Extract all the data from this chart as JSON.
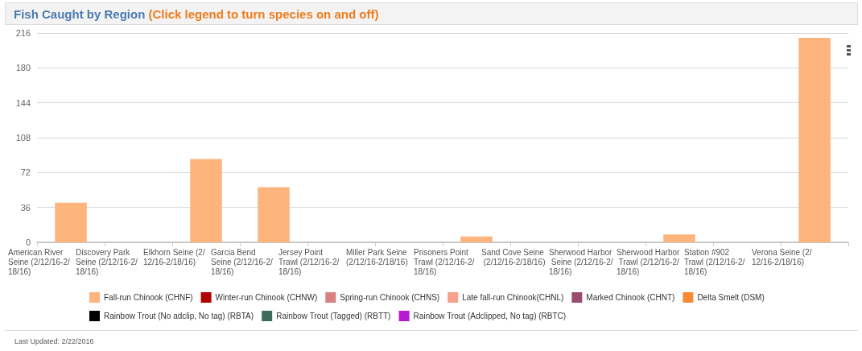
{
  "chart_data": {
    "type": "bar",
    "title": "Fish Caught by Region",
    "subtitle": "(Click legend to turn species on and off)",
    "annotations": [
      "Last Updated: 2/22/2016"
    ],
    "categories": [
      "American River Seine (2/12/16-2/18/16)",
      "Discovery Park Seine (2/12/16-2/18/16)",
      "Elkhorn Seine (2/12/16-2/18/16)",
      "Garcia Bend Seine (2/12/16-2/18/16)",
      "Jersey Point Trawl (2/12/16-2/18/16)",
      "Miller Park Seine (2/12/16-2/18/16)",
      "Prisoners Point Trawl (2/12/16-2/18/16)",
      "Sand Cove Seine (2/12/16-2/18/16)",
      "Sherwood Harbor Seine (2/12/16-2/18/16)",
      "Sherwood Harbor Trawl (2/12/16-2/18/16)",
      "Station #902 Trawl (2/12/16-2/18/16)",
      "Verona Seine (2/12/16-2/18/16)"
    ],
    "stacked": true,
    "series": [
      {
        "name": "Fall-run Chinook (CHNF)",
        "color": "#fdb47d",
        "values": [
          41,
          0,
          86,
          57,
          0,
          0,
          6,
          0,
          0,
          8,
          0,
          211
        ]
      },
      {
        "name": "Winter-run Chinook (CHNW)",
        "color": "#b30000",
        "values": [
          null,
          null,
          null,
          null,
          null,
          null,
          null,
          null,
          null,
          null,
          null,
          null
        ]
      },
      {
        "name": "Spring-run Chinook (CHNS)",
        "color": "#d98080",
        "values": [
          null,
          null,
          null,
          null,
          null,
          null,
          null,
          null,
          null,
          null,
          null,
          null
        ]
      },
      {
        "name": "Late fall-run Chinook(CHNL)",
        "color": "#f7a08a",
        "values": [
          null,
          null,
          null,
          null,
          null,
          null,
          null,
          null,
          null,
          null,
          null,
          null
        ]
      },
      {
        "name": "Marked Chinook (CHNT)",
        "color": "#9c4a6e",
        "values": [
          null,
          null,
          null,
          null,
          null,
          null,
          null,
          null,
          null,
          null,
          null,
          null
        ]
      },
      {
        "name": "Delta Smelt (DSM)",
        "color": "#f98b38",
        "values": [
          null,
          null,
          null,
          null,
          null,
          null,
          null,
          null,
          null,
          null,
          null,
          null
        ]
      },
      {
        "name": "Rainbow Trout (No adclip, No tag) (RBTA)",
        "color": "#000000",
        "values": [
          null,
          null,
          null,
          null,
          null,
          null,
          null,
          null,
          null,
          null,
          null,
          null
        ]
      },
      {
        "name": "Rainbow Trout (Tagged) (RBTT)",
        "color": "#3e6b5a",
        "values": [
          null,
          null,
          null,
          null,
          null,
          null,
          null,
          null,
          null,
          null,
          null,
          null
        ]
      },
      {
        "name": "Rainbow Trout (Adclipped, No tag) (RBTC)",
        "color": "#b619d1",
        "values": [
          null,
          null,
          null,
          null,
          null,
          null,
          null,
          null,
          null,
          null,
          null,
          null
        ]
      }
    ],
    "ylim": [
      0,
      216
    ],
    "yticks": [
      0,
      36,
      72,
      108,
      144,
      180,
      216
    ],
    "grid": "y",
    "legend": "bottom"
  }
}
